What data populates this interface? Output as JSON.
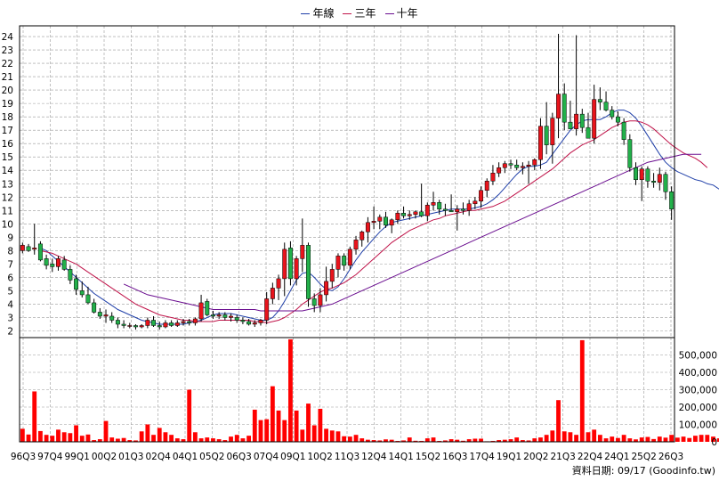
{
  "legend": [
    {
      "label": "年線",
      "color": "#1f3fa8"
    },
    {
      "label": "三年",
      "color": "#c0144a"
    },
    {
      "label": "十年",
      "color": "#6a0d8f"
    }
  ],
  "source_label": "資料日期: 09/17  (Goodinfo.tw)",
  "chart_data": {
    "type": "candlestick",
    "title": "",
    "price_axis": {
      "ticks": [
        2,
        3,
        4,
        5,
        6,
        7,
        8,
        9,
        10,
        11,
        12,
        13,
        14,
        15,
        16,
        17,
        18,
        19,
        20,
        21,
        22,
        23,
        24
      ],
      "ylim": [
        1.5,
        24.8
      ]
    },
    "volume_axis": {
      "ticks": [
        "0",
        "100,000",
        "200,000",
        "300,000",
        "400,000",
        "500,000"
      ],
      "values": [
        0,
        100000,
        200000,
        300000,
        400000,
        500000
      ],
      "ylim": [
        0,
        600000
      ]
    },
    "x_tick_labels": [
      "96Q3",
      "97Q4",
      "99Q1",
      "00Q2",
      "01Q3",
      "02Q4",
      "04Q1",
      "05Q2",
      "06Q3",
      "07Q4",
      "09Q1",
      "10Q2",
      "11Q3",
      "12Q4",
      "14Q1",
      "15Q2",
      "16Q3",
      "17Q4",
      "19Q1",
      "20Q2",
      "21Q3",
      "22Q4",
      "24Q1",
      "25Q2",
      "26Q3"
    ],
    "colors": {
      "up": "#e8141c",
      "down": "#22b04a",
      "volume": "#ff0000",
      "grid": "#9a9a9a"
    },
    "grid": true,
    "candles": [
      {
        "o": 8.0,
        "h": 8.6,
        "l": 7.8,
        "c": 8.4
      },
      {
        "o": 8.3,
        "h": 8.5,
        "l": 7.9,
        "c": 8.0
      },
      {
        "o": 8.1,
        "h": 10.0,
        "l": 7.7,
        "c": 8.2
      },
      {
        "o": 8.5,
        "h": 8.7,
        "l": 7.2,
        "c": 7.3
      },
      {
        "o": 7.4,
        "h": 7.7,
        "l": 6.6,
        "c": 6.9
      },
      {
        "o": 7.0,
        "h": 7.4,
        "l": 6.4,
        "c": 6.8
      },
      {
        "o": 6.8,
        "h": 7.6,
        "l": 6.5,
        "c": 7.4
      },
      {
        "o": 7.3,
        "h": 7.6,
        "l": 6.5,
        "c": 6.6
      },
      {
        "o": 6.6,
        "h": 6.9,
        "l": 5.5,
        "c": 5.8
      },
      {
        "o": 5.9,
        "h": 6.2,
        "l": 4.7,
        "c": 5.1
      },
      {
        "o": 5.0,
        "h": 5.7,
        "l": 4.5,
        "c": 4.7
      },
      {
        "o": 4.7,
        "h": 5.3,
        "l": 4.0,
        "c": 4.1
      },
      {
        "o": 4.1,
        "h": 4.4,
        "l": 3.3,
        "c": 3.4
      },
      {
        "o": 3.4,
        "h": 3.7,
        "l": 2.9,
        "c": 3.1
      },
      {
        "o": 3.1,
        "h": 3.6,
        "l": 2.6,
        "c": 3.2
      },
      {
        "o": 3.1,
        "h": 3.4,
        "l": 2.6,
        "c": 2.8
      },
      {
        "o": 2.8,
        "h": 3.0,
        "l": 2.2,
        "c": 2.5
      },
      {
        "o": 2.5,
        "h": 2.8,
        "l": 2.2,
        "c": 2.4
      },
      {
        "o": 2.4,
        "h": 2.6,
        "l": 2.2,
        "c": 2.4
      },
      {
        "o": 2.4,
        "h": 2.5,
        "l": 2.1,
        "c": 2.3
      },
      {
        "o": 2.3,
        "h": 2.5,
        "l": 2.2,
        "c": 2.4
      },
      {
        "o": 2.4,
        "h": 3.0,
        "l": 2.2,
        "c": 2.8
      },
      {
        "o": 2.8,
        "h": 3.1,
        "l": 2.3,
        "c": 2.4
      },
      {
        "o": 2.4,
        "h": 2.7,
        "l": 2.1,
        "c": 2.3
      },
      {
        "o": 2.3,
        "h": 2.8,
        "l": 2.2,
        "c": 2.6
      },
      {
        "o": 2.6,
        "h": 2.8,
        "l": 2.3,
        "c": 2.4
      },
      {
        "o": 2.4,
        "h": 2.8,
        "l": 2.3,
        "c": 2.6
      },
      {
        "o": 2.6,
        "h": 2.9,
        "l": 2.4,
        "c": 2.7
      },
      {
        "o": 2.7,
        "h": 2.9,
        "l": 2.4,
        "c": 2.6
      },
      {
        "o": 2.6,
        "h": 3.0,
        "l": 2.4,
        "c": 2.9
      },
      {
        "o": 2.9,
        "h": 4.7,
        "l": 2.7,
        "c": 4.1
      },
      {
        "o": 4.2,
        "h": 4.4,
        "l": 3.1,
        "c": 3.2
      },
      {
        "o": 3.2,
        "h": 3.5,
        "l": 2.9,
        "c": 3.1
      },
      {
        "o": 3.1,
        "h": 3.4,
        "l": 2.9,
        "c": 3.2
      },
      {
        "o": 3.2,
        "h": 3.4,
        "l": 2.8,
        "c": 3.0
      },
      {
        "o": 3.0,
        "h": 3.3,
        "l": 2.7,
        "c": 3.1
      },
      {
        "o": 3.0,
        "h": 3.2,
        "l": 2.6,
        "c": 2.8
      },
      {
        "o": 2.8,
        "h": 3.0,
        "l": 2.5,
        "c": 2.7
      },
      {
        "o": 2.7,
        "h": 2.9,
        "l": 2.4,
        "c": 2.5
      },
      {
        "o": 2.5,
        "h": 2.8,
        "l": 2.3,
        "c": 2.6
      },
      {
        "o": 2.6,
        "h": 2.9,
        "l": 2.4,
        "c": 2.8
      },
      {
        "o": 2.8,
        "h": 4.9,
        "l": 2.5,
        "c": 4.4
      },
      {
        "o": 4.4,
        "h": 5.6,
        "l": 4.0,
        "c": 5.2
      },
      {
        "o": 5.2,
        "h": 6.2,
        "l": 4.3,
        "c": 5.9
      },
      {
        "o": 5.9,
        "h": 8.6,
        "l": 4.6,
        "c": 8.1
      },
      {
        "o": 8.2,
        "h": 8.7,
        "l": 5.4,
        "c": 5.9
      },
      {
        "o": 5.9,
        "h": 7.6,
        "l": 5.4,
        "c": 7.4
      },
      {
        "o": 7.4,
        "h": 10.4,
        "l": 6.4,
        "c": 8.4
      },
      {
        "o": 8.4,
        "h": 8.6,
        "l": 3.8,
        "c": 4.4
      },
      {
        "o": 4.4,
        "h": 4.8,
        "l": 3.4,
        "c": 3.9
      },
      {
        "o": 3.9,
        "h": 5.2,
        "l": 3.4,
        "c": 4.7
      },
      {
        "o": 4.7,
        "h": 6.8,
        "l": 4.2,
        "c": 5.7
      },
      {
        "o": 5.7,
        "h": 7.0,
        "l": 5.2,
        "c": 6.6
      },
      {
        "o": 6.6,
        "h": 7.8,
        "l": 6.0,
        "c": 7.6
      },
      {
        "o": 7.6,
        "h": 7.8,
        "l": 6.5,
        "c": 6.9
      },
      {
        "o": 6.9,
        "h": 8.3,
        "l": 6.6,
        "c": 8.1
      },
      {
        "o": 8.1,
        "h": 9.1,
        "l": 7.7,
        "c": 8.8
      },
      {
        "o": 8.8,
        "h": 9.5,
        "l": 8.3,
        "c": 9.4
      },
      {
        "o": 9.4,
        "h": 10.5,
        "l": 8.6,
        "c": 10.1
      },
      {
        "o": 10.1,
        "h": 11.3,
        "l": 9.6,
        "c": 10.2
      },
      {
        "o": 10.2,
        "h": 10.7,
        "l": 9.6,
        "c": 10.5
      },
      {
        "o": 10.5,
        "h": 10.9,
        "l": 9.7,
        "c": 9.9
      },
      {
        "o": 9.9,
        "h": 10.4,
        "l": 9.3,
        "c": 10.3
      },
      {
        "o": 10.3,
        "h": 11.0,
        "l": 10.0,
        "c": 10.8
      },
      {
        "o": 10.8,
        "h": 11.3,
        "l": 10.4,
        "c": 10.6
      },
      {
        "o": 10.6,
        "h": 11.0,
        "l": 10.3,
        "c": 10.7
      },
      {
        "o": 10.7,
        "h": 11.0,
        "l": 10.4,
        "c": 10.9
      },
      {
        "o": 10.9,
        "h": 13.0,
        "l": 10.5,
        "c": 10.6
      },
      {
        "o": 10.6,
        "h": 11.6,
        "l": 10.2,
        "c": 11.4
      },
      {
        "o": 11.4,
        "h": 12.4,
        "l": 11.0,
        "c": 11.6
      },
      {
        "o": 11.6,
        "h": 11.8,
        "l": 10.7,
        "c": 11.1
      },
      {
        "o": 11.1,
        "h": 11.5,
        "l": 10.6,
        "c": 11.0
      },
      {
        "o": 11.0,
        "h": 12.2,
        "l": 10.9,
        "c": 10.9
      },
      {
        "o": 10.9,
        "h": 11.4,
        "l": 9.5,
        "c": 11.1
      },
      {
        "o": 11.1,
        "h": 11.6,
        "l": 10.7,
        "c": 11.0
      },
      {
        "o": 11.0,
        "h": 11.8,
        "l": 10.6,
        "c": 11.5
      },
      {
        "o": 11.5,
        "h": 12.0,
        "l": 11.1,
        "c": 11.7
      },
      {
        "o": 11.7,
        "h": 12.8,
        "l": 11.2,
        "c": 12.5
      },
      {
        "o": 12.5,
        "h": 13.4,
        "l": 12.0,
        "c": 13.2
      },
      {
        "o": 13.2,
        "h": 14.4,
        "l": 12.9,
        "c": 13.8
      },
      {
        "o": 13.8,
        "h": 14.6,
        "l": 13.5,
        "c": 14.2
      },
      {
        "o": 14.2,
        "h": 14.7,
        "l": 13.8,
        "c": 14.5
      },
      {
        "o": 14.5,
        "h": 14.8,
        "l": 14.1,
        "c": 14.4
      },
      {
        "o": 14.4,
        "h": 14.8,
        "l": 14.0,
        "c": 14.2
      },
      {
        "o": 14.2,
        "h": 14.6,
        "l": 13.7,
        "c": 14.3
      },
      {
        "o": 14.3,
        "h": 14.7,
        "l": 13.0,
        "c": 14.4
      },
      {
        "o": 14.4,
        "h": 14.9,
        "l": 14.0,
        "c": 14.8
      },
      {
        "o": 14.8,
        "h": 17.9,
        "l": 14.1,
        "c": 17.3
      },
      {
        "o": 17.3,
        "h": 19.1,
        "l": 15.2,
        "c": 15.9
      },
      {
        "o": 15.9,
        "h": 18.3,
        "l": 14.5,
        "c": 17.9
      },
      {
        "o": 17.9,
        "h": 24.2,
        "l": 16.4,
        "c": 19.7
      },
      {
        "o": 19.7,
        "h": 20.5,
        "l": 17.0,
        "c": 17.6
      },
      {
        "o": 17.6,
        "h": 19.2,
        "l": 17.2,
        "c": 17.1
      },
      {
        "o": 17.1,
        "h": 24.1,
        "l": 16.6,
        "c": 18.2
      },
      {
        "o": 18.2,
        "h": 18.6,
        "l": 16.8,
        "c": 17.2
      },
      {
        "o": 17.2,
        "h": 18.3,
        "l": 16.6,
        "c": 16.4
      },
      {
        "o": 16.4,
        "h": 20.4,
        "l": 16.0,
        "c": 19.3
      },
      {
        "o": 19.3,
        "h": 20.2,
        "l": 18.5,
        "c": 19.1
      },
      {
        "o": 19.1,
        "h": 19.9,
        "l": 18.4,
        "c": 18.5
      },
      {
        "o": 18.5,
        "h": 18.8,
        "l": 17.8,
        "c": 18.0
      },
      {
        "o": 18.0,
        "h": 18.4,
        "l": 17.3,
        "c": 17.6
      },
      {
        "o": 17.6,
        "h": 17.9,
        "l": 15.9,
        "c": 16.3
      },
      {
        "o": 16.3,
        "h": 16.7,
        "l": 13.9,
        "c": 14.2
      },
      {
        "o": 14.2,
        "h": 14.6,
        "l": 12.9,
        "c": 13.3
      },
      {
        "o": 13.3,
        "h": 14.3,
        "l": 11.7,
        "c": 14.1
      },
      {
        "o": 14.1,
        "h": 14.3,
        "l": 12.7,
        "c": 13.2
      },
      {
        "o": 13.2,
        "h": 13.8,
        "l": 12.7,
        "c": 13.1
      },
      {
        "o": 13.1,
        "h": 14.2,
        "l": 12.5,
        "c": 13.7
      },
      {
        "o": 13.7,
        "h": 13.9,
        "l": 11.8,
        "c": 12.4
      },
      {
        "o": 12.4,
        "h": 12.8,
        "l": 10.3,
        "c": 11.1
      }
    ],
    "volumes": [
      75000,
      42000,
      290000,
      62000,
      40000,
      35000,
      70000,
      55000,
      50000,
      95000,
      35000,
      42000,
      10000,
      15000,
      120000,
      25000,
      18000,
      22000,
      10000,
      8000,
      60000,
      100000,
      40000,
      80000,
      55000,
      40000,
      20000,
      15000,
      300000,
      55000,
      20000,
      25000,
      20000,
      15000,
      10000,
      30000,
      40000,
      20000,
      35000,
      185000,
      125000,
      130000,
      320000,
      180000,
      125000,
      590000,
      180000,
      70000,
      220000,
      95000,
      190000,
      75000,
      65000,
      60000,
      32000,
      30000,
      40000,
      20000,
      12000,
      10000,
      8000,
      14000,
      12000,
      5000,
      8000,
      25000,
      6000,
      5000,
      20000,
      25000,
      5000,
      8000,
      15000,
      12000,
      6000,
      15000,
      18000,
      18000,
      3000,
      5000,
      10000,
      12000,
      15000,
      25000,
      10000,
      8000,
      20000,
      25000,
      40000,
      65000,
      240000,
      60000,
      55000,
      40000,
      585000,
      55000,
      70000,
      40000,
      20000,
      30000,
      22000,
      40000,
      20000,
      14000,
      25000,
      28000,
      16000,
      30000,
      24000,
      40000,
      24000,
      30000,
      22000,
      35000,
      40000,
      40000,
      30000,
      20000,
      38000
    ],
    "moving_averages": [
      {
        "label": "年線",
        "color": "#1f3fa8",
        "start": 3,
        "values": [
          8.2,
          8.0,
          7.6,
          7.2,
          6.8,
          6.4,
          6.0,
          5.6,
          5.2,
          4.8,
          4.5,
          4.2,
          3.9,
          3.6,
          3.4,
          3.2,
          3.0,
          2.8,
          2.7,
          2.6,
          2.5,
          2.5,
          2.5,
          2.5,
          2.5,
          2.6,
          2.7,
          2.8,
          3.0,
          3.2,
          3.3,
          3.3,
          3.3,
          3.2,
          3.1,
          3.0,
          2.9,
          2.8,
          2.8,
          3.0,
          3.5,
          4.2,
          5.0,
          5.8,
          6.3,
          6.4,
          6.0,
          5.5,
          5.1,
          5.0,
          5.3,
          5.9,
          6.6,
          7.3,
          7.9,
          8.4,
          8.9,
          9.4,
          9.8,
          10.1,
          10.2,
          10.3,
          10.4,
          10.5,
          10.6,
          10.7,
          10.8,
          10.9,
          11.0,
          11.1,
          11.1,
          11.1,
          11.1,
          11.2,
          11.3,
          11.5,
          11.8,
          12.2,
          12.7,
          13.2,
          13.7,
          14.1,
          14.3,
          14.3,
          14.4,
          14.6,
          15.2,
          15.8,
          16.4,
          17.0,
          17.4,
          17.7,
          17.8,
          17.8,
          17.8,
          18.0,
          18.3,
          18.5,
          18.5,
          18.3,
          17.9,
          17.3,
          16.6,
          15.9,
          15.2,
          14.6,
          14.2,
          13.9,
          13.7,
          13.5,
          13.3,
          13.2,
          13.0,
          12.9,
          12.6,
          12.2
        ]
      },
      {
        "label": "三年",
        "color": "#c0144a",
        "start": 3,
        "values": [
          8.0,
          7.9,
          7.8,
          7.6,
          7.4,
          7.2,
          7.0,
          6.7,
          6.4,
          6.1,
          5.8,
          5.5,
          5.2,
          4.9,
          4.6,
          4.3,
          4.0,
          3.8,
          3.6,
          3.4,
          3.2,
          3.1,
          3.0,
          2.9,
          2.8,
          2.8,
          2.7,
          2.7,
          2.7,
          2.7,
          2.8,
          2.8,
          2.8,
          2.8,
          2.8,
          2.8,
          2.7,
          2.7,
          2.6,
          2.7,
          2.8,
          3.0,
          3.3,
          3.6,
          4.0,
          4.3,
          4.6,
          4.9,
          5.1,
          5.2,
          5.4,
          5.6,
          5.9,
          6.2,
          6.6,
          7.0,
          7.4,
          7.8,
          8.2,
          8.6,
          8.9,
          9.2,
          9.5,
          9.7,
          9.9,
          10.1,
          10.3,
          10.4,
          10.6,
          10.7,
          10.8,
          10.9,
          11.0,
          11.0,
          11.1,
          11.2,
          11.3,
          11.5,
          11.7,
          12.0,
          12.3,
          12.6,
          12.9,
          13.2,
          13.5,
          13.8,
          14.1,
          14.5,
          14.9,
          15.3,
          15.6,
          15.9,
          16.1,
          16.3,
          16.6,
          16.9,
          17.2,
          17.4,
          17.6,
          17.7,
          17.7,
          17.6,
          17.4,
          17.1,
          16.7,
          16.3,
          15.9,
          15.6,
          15.3,
          15.1,
          14.9,
          14.6,
          14.2
        ]
      },
      {
        "label": "十年",
        "color": "#6a0d8f",
        "start": 17,
        "values": [
          5.5,
          5.3,
          5.1,
          4.9,
          4.7,
          4.6,
          4.5,
          4.4,
          4.3,
          4.2,
          4.1,
          4.0,
          3.9,
          3.8,
          3.7,
          3.6,
          3.6,
          3.6,
          3.6,
          3.6,
          3.6,
          3.6,
          3.6,
          3.5,
          3.5,
          3.5,
          3.5,
          3.5,
          3.5,
          3.5,
          3.5,
          3.6,
          3.7,
          3.8,
          3.9,
          4.0,
          4.2,
          4.4,
          4.6,
          4.8,
          5.0,
          5.2,
          5.4,
          5.6,
          5.8,
          6.0,
          6.2,
          6.4,
          6.6,
          6.8,
          7.0,
          7.2,
          7.4,
          7.6,
          7.8,
          8.0,
          8.2,
          8.4,
          8.6,
          8.8,
          9.0,
          9.2,
          9.4,
          9.6,
          9.8,
          10.0,
          10.2,
          10.4,
          10.6,
          10.8,
          11.0,
          11.2,
          11.4,
          11.6,
          11.8,
          12.0,
          12.2,
          12.4,
          12.6,
          12.8,
          13.0,
          13.2,
          13.4,
          13.6,
          13.8,
          14.0,
          14.2,
          14.4,
          14.6,
          14.7,
          14.8,
          14.9,
          15.0,
          15.1,
          15.2,
          15.2,
          15.2,
          15.2
        ]
      }
    ]
  }
}
